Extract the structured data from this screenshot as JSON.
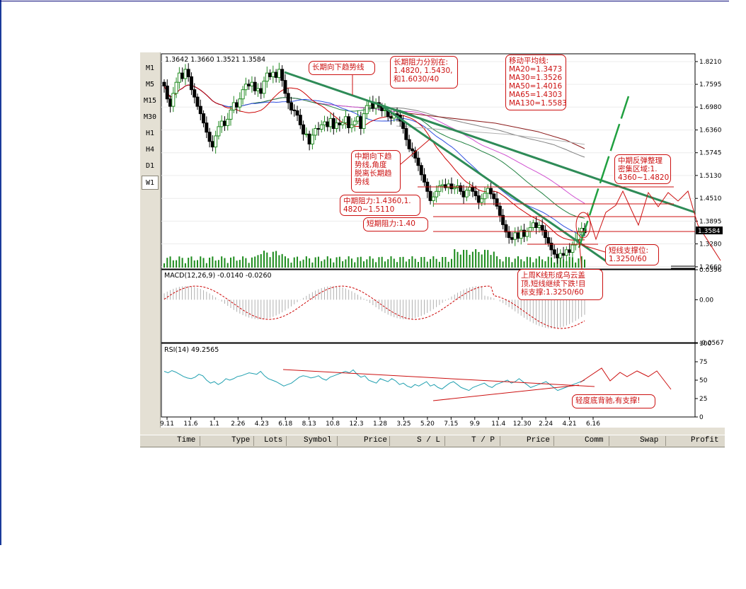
{
  "timeframes": [
    "M1",
    "M5",
    "M15",
    "M30",
    "H1",
    "H4",
    "D1",
    "W1"
  ],
  "active_timeframe": "W1",
  "terminal_columns": [
    "Time",
    "Type",
    "Lots",
    "Symbol",
    "Price",
    "S / L",
    "T / P",
    "Price",
    "Comm",
    "Swap",
    "Profit"
  ],
  "colors": {
    "up": "#228b22",
    "down": "#000000",
    "annotation": "#cc1010",
    "trend": "#2e8b57",
    "ma20": "#cc0000",
    "ma30": "#3050e0",
    "ma50": "#208040",
    "ma65": "#d050d0",
    "ma130": "#808080",
    "rsi": "#20a0b0",
    "macd_hist": "#b0b0b0",
    "macd_signal": "#cc0000",
    "volume": "#1a8a1a"
  },
  "chart_data": [
    {
      "type": "candlestick",
      "ohlc_label": "1.3642 1.3660 1.3521 1.3584",
      "y_ticks": [
        "1.8210",
        "1.7595",
        "1.6980",
        "1.6360",
        "1.5745",
        "1.5130",
        "1.4510",
        "1.3895",
        "1.3280",
        "1.2660"
      ],
      "ylim": [
        1.26,
        1.842
      ],
      "last_price": "1.3584",
      "x_ticks": [
        "9.11",
        "11.6",
        "1.1",
        "2.26",
        "4.23",
        "6.18",
        "8.13",
        "10.8",
        "12.3",
        "1.28",
        "3.25",
        "5.20",
        "7.15",
        "9.9",
        "11.4",
        "12.30",
        "2.24",
        "4.21",
        "6.16"
      ],
      "close": [
        1.755,
        1.72,
        1.7,
        1.735,
        1.765,
        1.79,
        1.775,
        1.8,
        1.78,
        1.745,
        1.725,
        1.7,
        1.68,
        1.655,
        1.63,
        1.605,
        1.59,
        1.62,
        1.645,
        1.66,
        1.648,
        1.665,
        1.69,
        1.71,
        1.698,
        1.72,
        1.745,
        1.76,
        1.755,
        1.765,
        1.742,
        1.748,
        1.735,
        1.768,
        1.79,
        1.78,
        1.792,
        1.778,
        1.8,
        1.77,
        1.735,
        1.71,
        1.69,
        1.688,
        1.676,
        1.65,
        1.625,
        1.625,
        1.598,
        1.622,
        1.64,
        1.638,
        1.65,
        1.658,
        1.645,
        1.667,
        1.64,
        1.655,
        1.65,
        1.656,
        1.672,
        1.642,
        1.65,
        1.66,
        1.672,
        1.64,
        1.68,
        1.702,
        1.712,
        1.695,
        1.71,
        1.7,
        1.688,
        1.69,
        1.672,
        1.668,
        1.68,
        1.676,
        1.66,
        1.64,
        1.61,
        1.585,
        1.58,
        1.56,
        1.54,
        1.515,
        1.495,
        1.47,
        1.445,
        1.455,
        1.47,
        1.485,
        1.488,
        1.48,
        1.49,
        1.477,
        1.48,
        1.485,
        1.47,
        1.455,
        1.473,
        1.481,
        1.47,
        1.458,
        1.44,
        1.45,
        1.465,
        1.478,
        1.463,
        1.45,
        1.43,
        1.405,
        1.38,
        1.36,
        1.345,
        1.34,
        1.358,
        1.343,
        1.365,
        1.348,
        1.362,
        1.372,
        1.385,
        1.372,
        1.378,
        1.365,
        1.345,
        1.33,
        1.312,
        1.3,
        1.29,
        1.302,
        1.297,
        1.312,
        1.305,
        1.325,
        1.34,
        1.36,
        1.37,
        1.358
      ],
      "annotations": [
        "长期向下趋势线",
        "长期阻力分别在:\n1.4820, 1.5430,\n和1.6030/40",
        "移动平均线:\nMA20=1.3473\nMA30=1.3526\nMA50=1.4016\nMA65=1.4303\nMA130=1.5583",
        "中期向下趋\n势线,角度\n脱离长期趋\n势线",
        "中期反弹整理\n密集区域:1.\n4360~1.4820",
        "中期阻力:1.4360,1.\n4820~1.5110",
        "短期阻力:1.40",
        "短线支撑位:\n1.3250/60",
        "上周K线形成乌云盖\n顶,短线继续下跌!目\n标支撑:1.3250/60"
      ]
    },
    {
      "type": "macd",
      "label": "MACD(12,26,9)  -0.0140  -0.0260",
      "y_ticks": [
        "0.0396",
        "0.00",
        "-0.0567"
      ],
      "ylim": [
        -0.0567,
        0.0396
      ]
    },
    {
      "type": "line",
      "label": "RSI(14)  49.2565",
      "y_ticks": [
        "100",
        "75",
        "50",
        "25",
        "0"
      ],
      "ylim": [
        0,
        100
      ],
      "annotation": "轻度底背驰,有支撑!",
      "values": [
        62,
        60,
        63,
        61,
        58,
        55,
        53,
        52,
        54,
        58,
        56,
        50,
        46,
        48,
        44,
        47,
        52,
        50,
        52,
        55,
        56,
        58,
        60,
        59,
        58,
        62,
        56,
        52,
        50,
        48,
        45,
        42,
        44,
        46,
        50,
        54,
        56,
        55,
        53,
        54,
        56,
        52,
        50,
        54,
        56,
        58,
        60,
        62,
        60,
        64,
        58,
        54,
        56,
        50,
        48,
        46,
        52,
        50,
        48,
        52,
        49,
        44,
        46,
        42,
        40,
        44,
        42,
        45,
        48,
        42,
        44,
        40,
        38,
        42,
        46,
        48,
        44,
        40,
        38,
        36,
        40,
        42,
        44,
        46,
        42,
        40,
        44,
        46,
        48,
        50,
        46,
        48,
        52,
        48,
        44,
        40,
        42,
        44,
        46,
        48,
        44,
        40,
        36,
        38,
        40,
        42,
        44,
        46,
        48,
        50
      ]
    }
  ]
}
